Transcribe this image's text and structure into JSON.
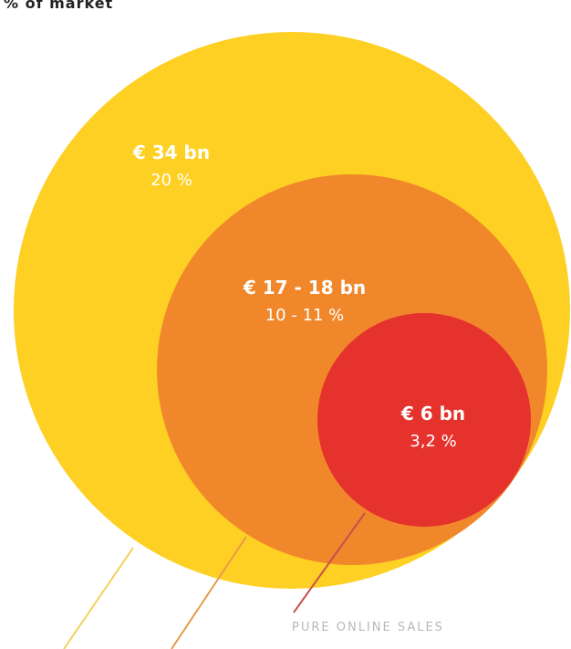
{
  "header": {
    "label": "% of market"
  },
  "chart_data": {
    "type": "nested-bubble",
    "unit_value": "€ bn",
    "unit_share": "% of market",
    "series": [
      {
        "value_label": "€ 34 bn",
        "share_label": "20 %",
        "value_bn": 34,
        "share_pct": 20,
        "color": "#FDD023",
        "callout": ""
      },
      {
        "value_label": "€ 17 - 18 bn",
        "share_label": "10 - 11 %",
        "value_bn": [
          17,
          18
        ],
        "share_pct": [
          10,
          11
        ],
        "color": "#F0882B",
        "callout": ""
      },
      {
        "value_label": "€ 6 bn",
        "share_label": "3,2 %",
        "value_bn": 6,
        "share_pct": 3.2,
        "color": "#E5322D",
        "callout": "PURE ONLINE SALES"
      }
    ]
  }
}
